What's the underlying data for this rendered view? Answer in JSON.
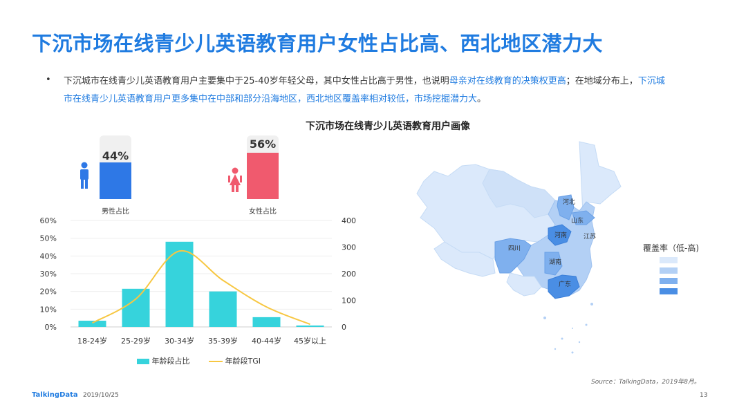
{
  "slide": {
    "title": "下沉市场在线青少儿英语教育用户女性占比高、西北地区潜力大",
    "bullet": "•",
    "desc_part1": "下沉城市在线青少儿英语教育用户主要集中于25-40岁年轻父母，其中女性占比高于男性，也说明",
    "desc_hl1": "母亲对在线教育的决策权更高",
    "desc_part2": "；在地域分布上，",
    "desc_hl2": "下沉城市在线青少儿英语教育用户更多集中在中部和部分沿海地区，西北地区覆盖率相对较低，市场挖掘潜力大",
    "desc_part3": "。",
    "chart_title": "下沉市场在线青少儿英语教育用户画像",
    "source": "Source：TalkingData，2019年8月。",
    "footer_logo": "TalkingData",
    "footer_date": "2019/10/25",
    "page_number": "13"
  },
  "colors": {
    "title": "#1f7be0",
    "male": "#2e78e6",
    "female": "#f05a6e",
    "bar": "#36d3dc",
    "tgi": "#f7c742"
  },
  "gender": {
    "male": {
      "label": "男性占比",
      "pct_text": "44%",
      "value": 44,
      "icon": "male-person-icon"
    },
    "female": {
      "label": "女性占比",
      "pct_text": "56%",
      "value": 56,
      "icon": "female-person-icon"
    }
  },
  "map": {
    "legend_title": "覆盖率（低-高)",
    "legend_colors": [
      "#dbe9fb",
      "#b3d0f5",
      "#7fb0ee",
      "#4a8ee4"
    ],
    "provinces": [
      "河北",
      "山东",
      "河南",
      "江苏",
      "四川",
      "湖南",
      "广东"
    ]
  },
  "chart_data": {
    "type": "bar",
    "categories": [
      "18-24岁",
      "25-29岁",
      "30-34岁",
      "35-39岁",
      "40-44岁",
      "45岁以上"
    ],
    "series": [
      {
        "name": "年龄段占比",
        "type": "bar",
        "axis": "left",
        "values": [
          3.5,
          21.5,
          48,
          20,
          5.5,
          0.8
        ]
      },
      {
        "name": "年龄段TGI",
        "type": "line",
        "axis": "right",
        "values": [
          15,
          105,
          285,
          175,
          75,
          10
        ]
      }
    ],
    "y_left": {
      "ticks": [
        "0%",
        "10%",
        "20%",
        "30%",
        "40%",
        "50%",
        "60%"
      ],
      "range": [
        0,
        60
      ]
    },
    "y_right": {
      "ticks": [
        "0",
        "100",
        "200",
        "300",
        "400"
      ],
      "range": [
        0,
        400
      ]
    },
    "grid": true,
    "legend_position": "bottom"
  }
}
